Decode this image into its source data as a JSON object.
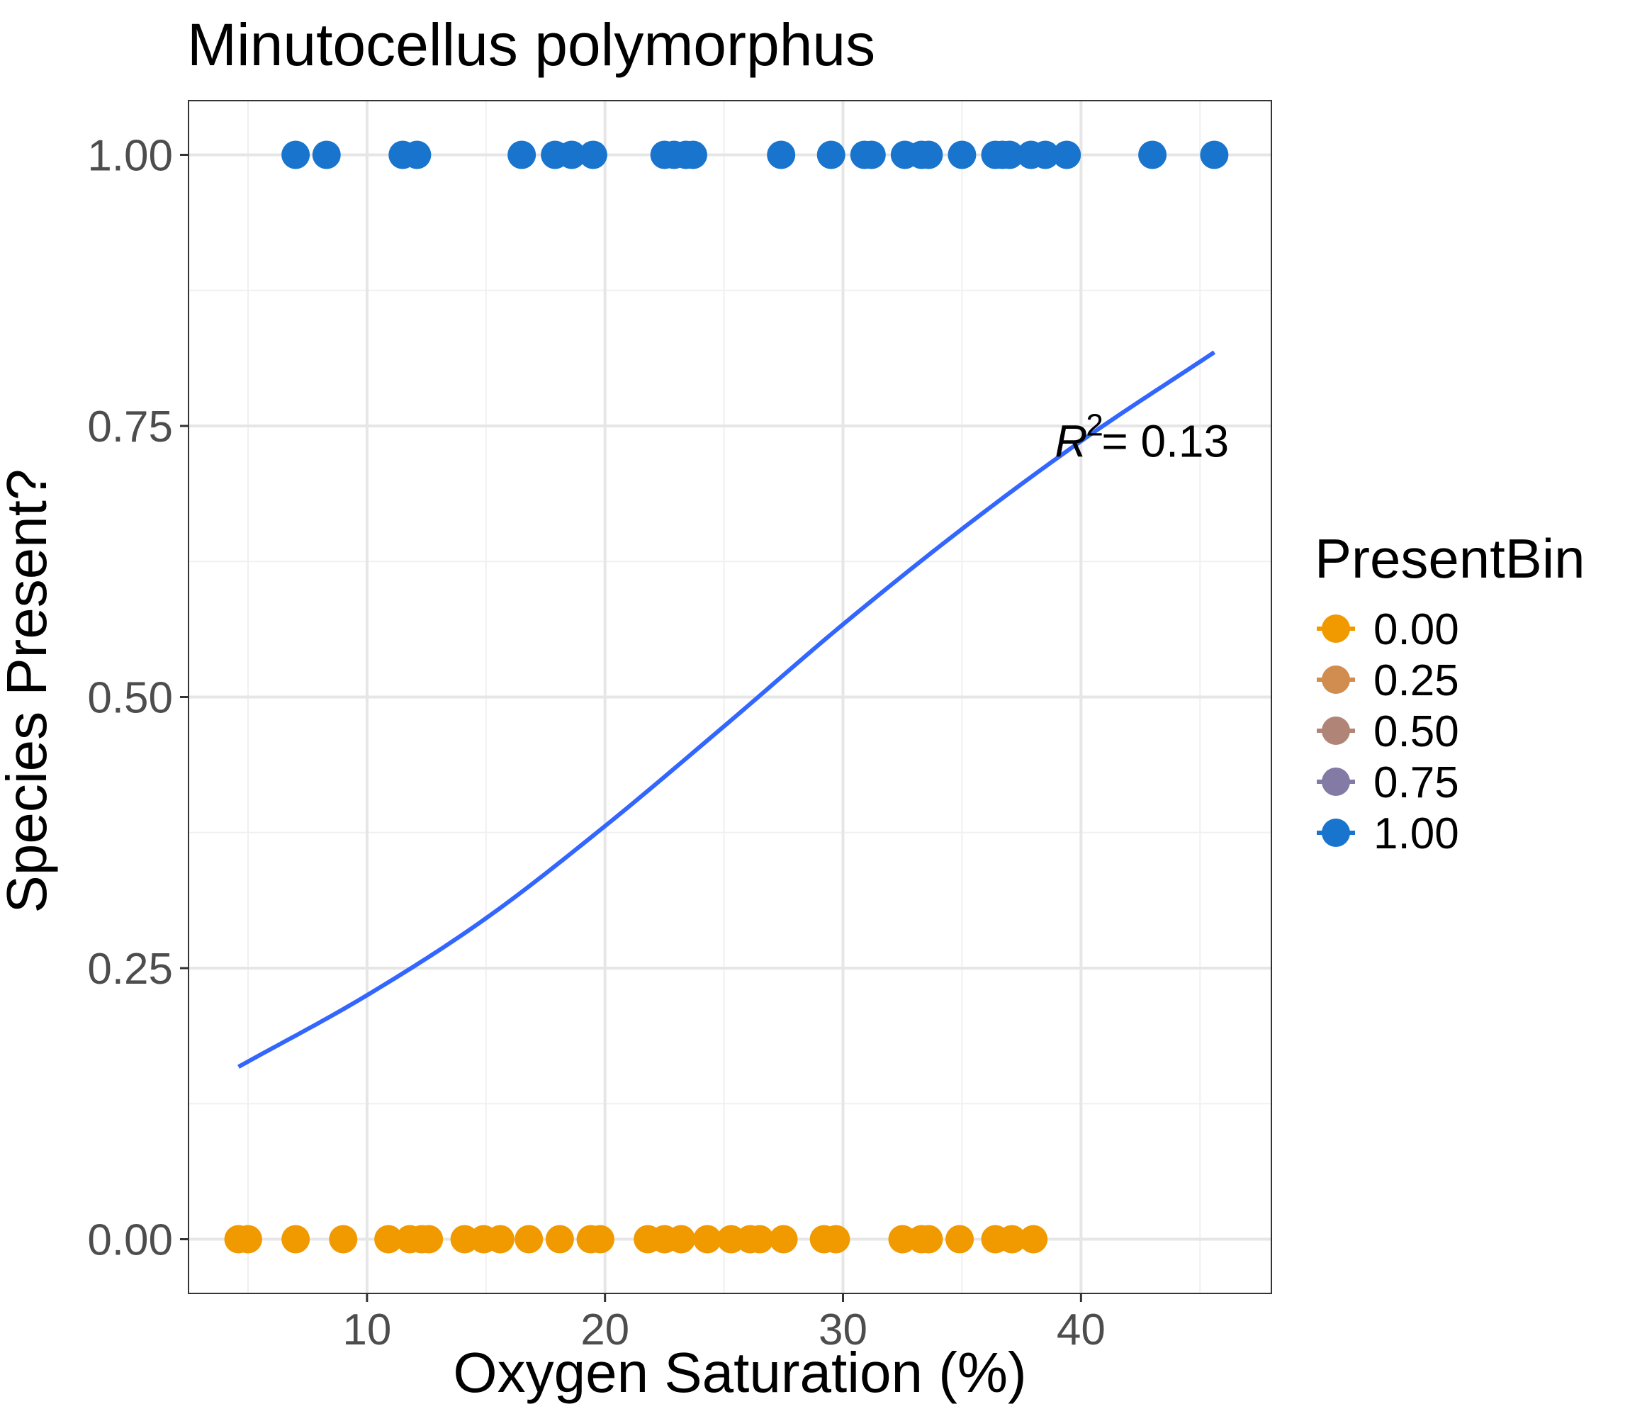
{
  "chart_data": {
    "type": "scatter",
    "title": "Minutocellus polymorphus",
    "xlabel": "Oxygen Saturation (%)",
    "ylabel": "Species Present?",
    "xlim": [
      2.5,
      48
    ],
    "ylim": [
      -0.05,
      1.05
    ],
    "x_ticks": [
      10,
      20,
      30,
      40
    ],
    "x_tick_labels": [
      "10",
      "20",
      "30",
      "40"
    ],
    "y_ticks": [
      0,
      0.25,
      0.5,
      0.75,
      1
    ],
    "y_tick_labels": [
      "0.00",
      "0.25",
      "0.50",
      "0.75",
      "1.00"
    ],
    "grid": true,
    "legend": {
      "title": "PresentBin",
      "placement": "right",
      "entries": [
        {
          "label": "0.00",
          "color": "#F09A00"
        },
        {
          "label": "0.25",
          "color": "#D18C4F"
        },
        {
          "label": "0.50",
          "color": "#B08577"
        },
        {
          "label": "0.75",
          "color": "#837AA6"
        },
        {
          "label": "1.00",
          "color": "#1874CD"
        }
      ]
    },
    "series": [
      {
        "value": 1,
        "color": "#1874CD",
        "x": [
          7.0,
          8.3,
          11.5,
          12.1,
          16.5,
          17.9,
          18.6,
          19.5,
          22.5,
          22.9,
          23.4,
          23.7,
          27.4,
          29.5,
          30.9,
          31.2,
          32.6,
          33.3,
          33.6,
          35.0,
          36.4,
          36.7,
          37.0,
          37.9,
          38.5,
          39.4,
          43.0,
          45.6
        ],
        "y": [
          1,
          1,
          1,
          1,
          1,
          1,
          1,
          1,
          1,
          1,
          1,
          1,
          1,
          1,
          1,
          1,
          1,
          1,
          1,
          1,
          1,
          1,
          1,
          1,
          1,
          1,
          1,
          1
        ]
      },
      {
        "value": 0,
        "color": "#F09A00",
        "x": [
          4.6,
          5.0,
          7.0,
          9.0,
          10.9,
          11.8,
          12.3,
          12.6,
          14.1,
          14.9,
          15.6,
          16.8,
          18.1,
          19.4,
          19.8,
          21.8,
          22.5,
          23.2,
          24.3,
          25.3,
          26.1,
          26.5,
          27.5,
          29.2,
          29.7,
          32.5,
          33.3,
          33.6,
          34.9,
          36.4,
          37.1,
          38.0
        ],
        "y": [
          0,
          0,
          0,
          0,
          0,
          0,
          0,
          0,
          0,
          0,
          0,
          0,
          0,
          0,
          0,
          0,
          0,
          0,
          0,
          0,
          0,
          0,
          0,
          0,
          0,
          0,
          0,
          0,
          0,
          0,
          0,
          0
        ]
      }
    ],
    "fit_line": {
      "type": "logistic",
      "color": "#3366FF",
      "x": [
        4.6,
        10,
        15,
        20,
        25,
        30,
        35,
        40,
        45.6
      ],
      "y": [
        0.159,
        0.225,
        0.296,
        0.381,
        0.473,
        0.567,
        0.655,
        0.736,
        0.818
      ]
    },
    "annotation": {
      "symbol": "R",
      "superscript": "2",
      "text": " = 0.13",
      "x": 38.9,
      "y": 0.74
    }
  }
}
